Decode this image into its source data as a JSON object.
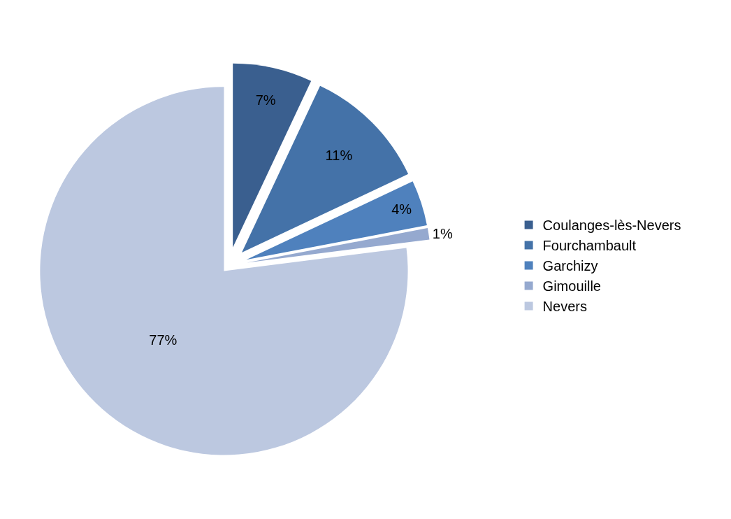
{
  "chart_data": {
    "type": "pie",
    "categories": [
      "Coulanges-lès-Nevers",
      "Fourchambault",
      "Garchizy",
      "Gimouille",
      "Nevers"
    ],
    "values": [
      7,
      11,
      4,
      1,
      77
    ],
    "value_labels": [
      "7%",
      "11%",
      "4%",
      "1%",
      "77%"
    ],
    "colors": [
      "#3a5f8f",
      "#4472a8",
      "#4f81bd",
      "#95a9cf",
      "#bcc8e0"
    ],
    "legend": "right"
  }
}
